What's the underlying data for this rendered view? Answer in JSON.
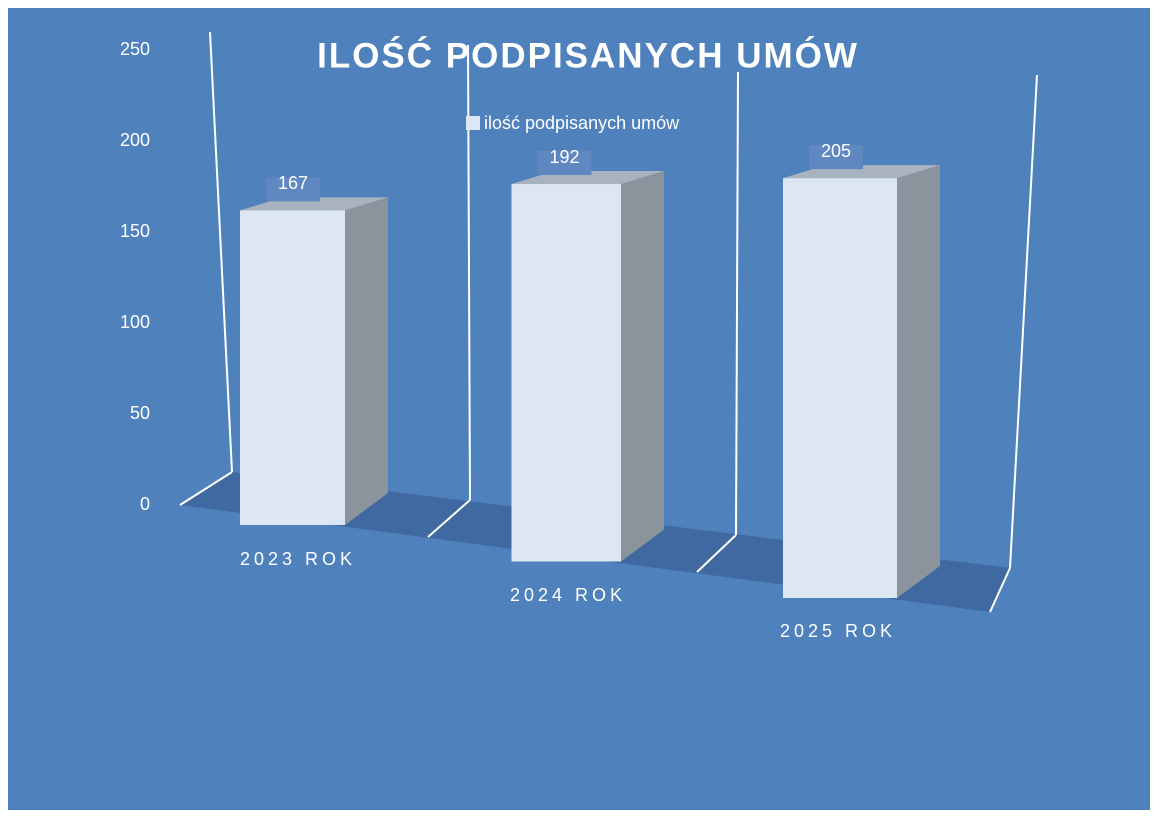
{
  "chart_data": {
    "type": "bar3d",
    "title": "ILOŚĆ PODPISANYCH UMÓW",
    "categories": [
      "2023 ROK",
      "2024 ROK",
      "2025 ROK"
    ],
    "series": [
      {
        "name": "ilość podpisanych umów",
        "color": "#dde6f3",
        "values": [
          167,
          192,
          205
        ]
      }
    ],
    "ylim": [
      0,
      250
    ],
    "yticks": [
      0,
      50,
      100,
      150,
      200,
      250
    ],
    "grid": false,
    "legend": "top"
  }
}
